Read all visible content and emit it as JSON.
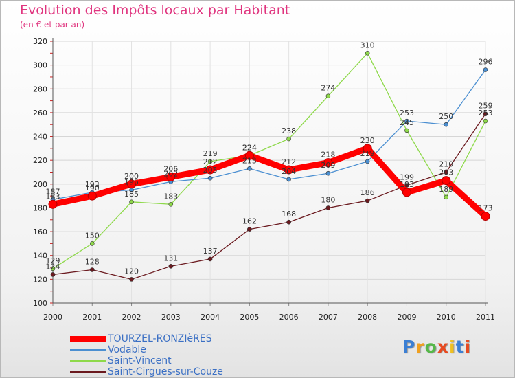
{
  "chart_data": {
    "type": "line",
    "title": "Evolution des Impôts locaux par Habitant",
    "subtitle": "(en € et par an)",
    "x": [
      "2000",
      "2001",
      "2002",
      "2003",
      "2004",
      "2005",
      "2006",
      "2007",
      "2008",
      "2009",
      "2010",
      "2011"
    ],
    "ylim": [
      100,
      320
    ],
    "yticks": [
      "100",
      "120",
      "140",
      "160",
      "180",
      "200",
      "220",
      "240",
      "260",
      "280",
      "300",
      "320"
    ],
    "grid": true,
    "legend_position": "bottom-left",
    "series": [
      {
        "name": "TOURZEL-RONZIèRES",
        "color": "#ff0000",
        "values": [
          183,
          190,
          200,
          206,
          212,
          224,
          212,
          218,
          230,
          193,
          203,
          173
        ]
      },
      {
        "name": "Vodable",
        "color": "#4b8fd1",
        "values": [
          187,
          193,
          195,
          202,
          205,
          213,
          204,
          209,
          219,
          253,
          250,
          296
        ]
      },
      {
        "name": "Saint-Vincent",
        "color": "#8ed94a",
        "values": [
          129,
          150,
          185,
          183,
          219,
          224,
          238,
          274,
          310,
          245,
          189,
          253
        ]
      },
      {
        "name": "Saint-Cirgues-sur-Couze",
        "color": "#6b1a1f",
        "values": [
          124,
          128,
          120,
          131,
          137,
          162,
          168,
          180,
          186,
          199,
          210,
          259
        ]
      }
    ]
  },
  "logo": {
    "letters": [
      "P",
      "r",
      "o",
      "x",
      "i",
      "t",
      "i"
    ],
    "colors": [
      "#3b7fd4",
      "#f0a020",
      "#55b848",
      "#e84a20",
      "#f0c020",
      "#3b7fd4",
      "#e84a20"
    ]
  }
}
